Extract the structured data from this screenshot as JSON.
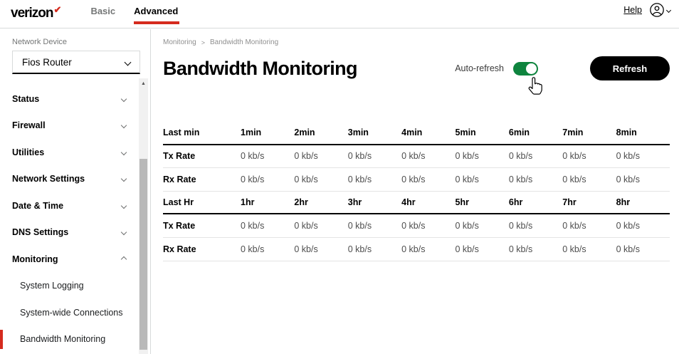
{
  "header": {
    "logo_text": "verizon",
    "logo_check": "✔",
    "tabs": [
      {
        "label": "Basic",
        "active": false
      },
      {
        "label": "Advanced",
        "active": true
      }
    ],
    "help_label": "Help"
  },
  "sidebar": {
    "device_label": "Network Device",
    "device_value": "Fios Router",
    "items": [
      {
        "label": "Status",
        "state": "collapsed"
      },
      {
        "label": "Firewall",
        "state": "collapsed"
      },
      {
        "label": "Utilities",
        "state": "collapsed"
      },
      {
        "label": "Network Settings",
        "state": "collapsed"
      },
      {
        "label": "Date & Time",
        "state": "collapsed"
      },
      {
        "label": "DNS Settings",
        "state": "collapsed"
      },
      {
        "label": "Monitoring",
        "state": "expanded"
      }
    ],
    "subitems": [
      {
        "label": "System Logging",
        "active": false
      },
      {
        "label": "System-wide Connections",
        "active": false
      },
      {
        "label": "Bandwidth Monitoring",
        "active": true
      }
    ]
  },
  "main": {
    "breadcrumb": [
      "Monitoring",
      "Bandwidth Monitoring"
    ],
    "breadcrumb_separator": ">",
    "title": "Bandwidth Monitoring",
    "auto_refresh_label": "Auto-refresh",
    "auto_refresh_on": true,
    "refresh_button_label": "Refresh"
  },
  "table": {
    "sections": [
      {
        "header": [
          "Last min",
          "1min",
          "2min",
          "3min",
          "4min",
          "5min",
          "6min",
          "7min",
          "8min"
        ],
        "rows": [
          {
            "label": "Tx Rate",
            "values": [
              "0 kb/s",
              "0 kb/s",
              "0 kb/s",
              "0 kb/s",
              "0 kb/s",
              "0 kb/s",
              "0 kb/s",
              "0 kb/s"
            ]
          },
          {
            "label": "Rx Rate",
            "values": [
              "0 kb/s",
              "0 kb/s",
              "0 kb/s",
              "0 kb/s",
              "0 kb/s",
              "0 kb/s",
              "0 kb/s",
              "0 kb/s"
            ]
          }
        ]
      },
      {
        "header": [
          "Last Hr",
          "1hr",
          "2hr",
          "3hr",
          "4hr",
          "5hr",
          "6hr",
          "7hr",
          "8hr"
        ],
        "rows": [
          {
            "label": "Tx Rate",
            "values": [
              "0 kb/s",
              "0 kb/s",
              "0 kb/s",
              "0 kb/s",
              "0 kb/s",
              "0 kb/s",
              "0 kb/s",
              "0 kb/s"
            ]
          },
          {
            "label": "Rx Rate",
            "values": [
              "0 kb/s",
              "0 kb/s",
              "0 kb/s",
              "0 kb/s",
              "0 kb/s",
              "0 kb/s",
              "0 kb/s",
              "0 kb/s"
            ]
          }
        ]
      }
    ]
  },
  "colors": {
    "accent_red": "#d52b1e",
    "toggle_green": "#0e843e",
    "button_black": "#000000"
  }
}
